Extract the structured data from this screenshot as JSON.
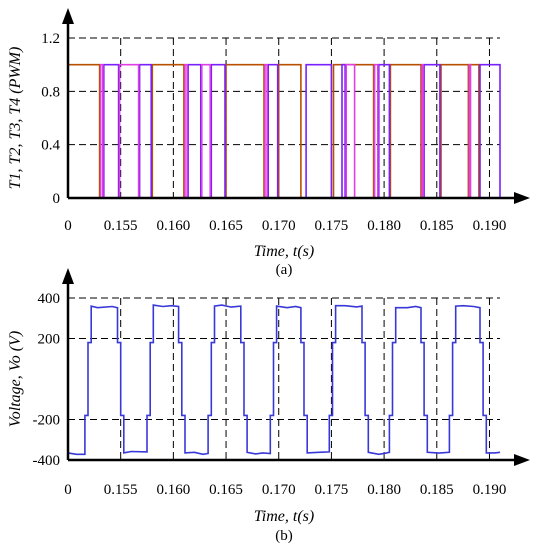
{
  "chart_data": [
    {
      "type": "line",
      "title": "",
      "xlabel": "Time, t(s)",
      "ylabel": "T1, T2, T3, T4 (PWM)",
      "caption": "(a)",
      "xlim": [
        0.15,
        0.191
      ],
      "ylim": [
        0,
        1.2
      ],
      "x_tick_labels": [
        {
          "x": 0.15,
          "label": "0"
        },
        {
          "x": 0.155,
          "label": "0.155"
        },
        {
          "x": 0.16,
          "label": "0.160"
        },
        {
          "x": 0.165,
          "label": "0.165"
        },
        {
          "x": 0.17,
          "label": "0.170"
        },
        {
          "x": 0.175,
          "label": "0.175"
        },
        {
          "x": 0.18,
          "label": "0.180"
        },
        {
          "x": 0.185,
          "label": "0.185"
        },
        {
          "x": 0.19,
          "label": "0.190"
        }
      ],
      "y_tick_labels": [
        {
          "y": 0,
          "label": "0"
        },
        {
          "y": 0.4,
          "label": "0.4"
        },
        {
          "y": 0.8,
          "label": "0.8"
        },
        {
          "y": 1.2,
          "label": "1.2"
        }
      ],
      "grid": true,
      "series": [
        {
          "color": "#b85000",
          "level": 1,
          "pulses": [
            [
              0.15,
              0.153
            ],
            [
              0.158,
              0.161
            ],
            [
              0.165,
              0.1686
            ],
            [
              0.17,
              0.1721
            ],
            [
              0.1752,
              0.179
            ],
            [
              0.1806,
              0.1835
            ],
            [
              0.1854,
              0.188
            ],
            [
              0.1881,
              0.189
            ]
          ]
        },
        {
          "color": "#7a20ff",
          "level": 1,
          "pulses": [
            [
              0.1534,
              0.1548
            ],
            [
              0.1568,
              0.1579
            ],
            [
              0.1614,
              0.1626
            ],
            [
              0.1636,
              0.1649
            ],
            [
              0.169,
              0.1699
            ],
            [
              0.1726,
              0.175
            ],
            [
              0.176,
              0.1763
            ],
            [
              0.1795,
              0.1805
            ],
            [
              0.1838,
              0.1853
            ],
            [
              0.1891,
              0.191
            ]
          ]
        },
        {
          "color": "#e040e0",
          "level": 1,
          "pulses": [
            [
              0.1531,
              0.1533
            ],
            [
              0.1549,
              0.1567
            ],
            [
              0.1611,
              0.1613
            ],
            [
              0.1627,
              0.1635
            ],
            [
              0.1687,
              0.1689
            ],
            [
              0.1764,
              0.1772
            ],
            [
              0.1791,
              0.1794
            ],
            [
              0.1836,
              0.1837
            ],
            [
              0.1881,
              0.1882
            ]
          ]
        }
      ]
    },
    {
      "type": "line",
      "title": "",
      "xlabel": "Time, t(s)",
      "ylabel": "Voltage, Vo (V)",
      "caption": "(b)",
      "xlim": [
        0.15,
        0.191
      ],
      "ylim": [
        -400,
        400
      ],
      "x_tick_labels": [
        {
          "x": 0.15,
          "label": "0"
        },
        {
          "x": 0.155,
          "label": "0.155"
        },
        {
          "x": 0.16,
          "label": "0.160"
        },
        {
          "x": 0.165,
          "label": "0.165"
        },
        {
          "x": 0.17,
          "label": "0.170"
        },
        {
          "x": 0.175,
          "label": "0.175"
        },
        {
          "x": 0.18,
          "label": "0.180"
        },
        {
          "x": 0.185,
          "label": "0.185"
        },
        {
          "x": 0.19,
          "label": "0.190"
        }
      ],
      "y_tick_labels": [
        {
          "y": 400,
          "label": "400"
        },
        {
          "y": 200,
          "label": "200"
        },
        {
          "y": -200,
          "label": "-200"
        },
        {
          "y": -400,
          "label": "-400"
        }
      ],
      "grid": true,
      "series": [
        {
          "color": "#3838d8",
          "points": [
            [
              0.15,
              -365
            ],
            [
              0.1508,
              -372
            ],
            [
              0.1516,
              -372
            ],
            [
              0.1516,
              -180
            ],
            [
              0.1519,
              -180
            ],
            [
              0.1519,
              180
            ],
            [
              0.1522,
              180
            ],
            [
              0.1522,
              360
            ],
            [
              0.1528,
              352
            ],
            [
              0.1542,
              358
            ],
            [
              0.1547,
              352
            ],
            [
              0.1547,
              180
            ],
            [
              0.155,
              180
            ],
            [
              0.155,
              -180
            ],
            [
              0.1553,
              -180
            ],
            [
              0.1553,
              -365
            ],
            [
              0.156,
              -358
            ],
            [
              0.1575,
              -360
            ],
            [
              0.1575,
              -180
            ],
            [
              0.1578,
              -180
            ],
            [
              0.1578,
              180
            ],
            [
              0.1581,
              180
            ],
            [
              0.1581,
              365
            ],
            [
              0.159,
              358
            ],
            [
              0.1598,
              362
            ],
            [
              0.1605,
              358
            ],
            [
              0.1605,
              180
            ],
            [
              0.1608,
              180
            ],
            [
              0.1608,
              -180
            ],
            [
              0.1611,
              -180
            ],
            [
              0.1611,
              -365
            ],
            [
              0.162,
              -362
            ],
            [
              0.1628,
              -372
            ],
            [
              0.1633,
              -368
            ],
            [
              0.1633,
              -180
            ],
            [
              0.1636,
              -180
            ],
            [
              0.1636,
              180
            ],
            [
              0.1639,
              180
            ],
            [
              0.1639,
              360
            ],
            [
              0.1646,
              365
            ],
            [
              0.1655,
              355
            ],
            [
              0.1664,
              360
            ],
            [
              0.1664,
              180
            ],
            [
              0.1667,
              180
            ],
            [
              0.1667,
              -180
            ],
            [
              0.167,
              -180
            ],
            [
              0.167,
              -362
            ],
            [
              0.1678,
              -370
            ],
            [
              0.1685,
              -365
            ],
            [
              0.1692,
              -368
            ],
            [
              0.1692,
              -180
            ],
            [
              0.1695,
              -180
            ],
            [
              0.1695,
              180
            ],
            [
              0.1698,
              180
            ],
            [
              0.1698,
              360
            ],
            [
              0.1708,
              352
            ],
            [
              0.1716,
              358
            ],
            [
              0.1721,
              352
            ],
            [
              0.1721,
              180
            ],
            [
              0.1724,
              180
            ],
            [
              0.1724,
              -180
            ],
            [
              0.1727,
              -180
            ],
            [
              0.1727,
              -365
            ],
            [
              0.1738,
              -362
            ],
            [
              0.1748,
              -360
            ],
            [
              0.1748,
              -180
            ],
            [
              0.1751,
              -180
            ],
            [
              0.1751,
              180
            ],
            [
              0.1754,
              180
            ],
            [
              0.1754,
              362
            ],
            [
              0.1763,
              362
            ],
            [
              0.1774,
              356
            ],
            [
              0.1779,
              360
            ],
            [
              0.1779,
              180
            ],
            [
              0.1782,
              180
            ],
            [
              0.1782,
              -180
            ],
            [
              0.1785,
              -180
            ],
            [
              0.1785,
              -362
            ],
            [
              0.1795,
              -372
            ],
            [
              0.18,
              -368
            ],
            [
              0.1805,
              -362
            ],
            [
              0.1805,
              -180
            ],
            [
              0.1808,
              -180
            ],
            [
              0.1808,
              180
            ],
            [
              0.1811,
              180
            ],
            [
              0.1811,
              352
            ],
            [
              0.1822,
              352
            ],
            [
              0.183,
              358
            ],
            [
              0.1835,
              352
            ],
            [
              0.1835,
              180
            ],
            [
              0.1838,
              180
            ],
            [
              0.1838,
              -180
            ],
            [
              0.1841,
              -180
            ],
            [
              0.1841,
              -362
            ],
            [
              0.1852,
              -366
            ],
            [
              0.1862,
              -362
            ],
            [
              0.1862,
              -180
            ],
            [
              0.1865,
              -180
            ],
            [
              0.1865,
              180
            ],
            [
              0.1868,
              180
            ],
            [
              0.1868,
              360
            ],
            [
              0.1875,
              362
            ],
            [
              0.1885,
              358
            ],
            [
              0.1891,
              352
            ],
            [
              0.1891,
              180
            ],
            [
              0.1894,
              180
            ],
            [
              0.1894,
              -180
            ],
            [
              0.1897,
              -180
            ],
            [
              0.1897,
              -365
            ],
            [
              0.1905,
              -365
            ],
            [
              0.191,
              -362
            ]
          ]
        }
      ]
    }
  ]
}
